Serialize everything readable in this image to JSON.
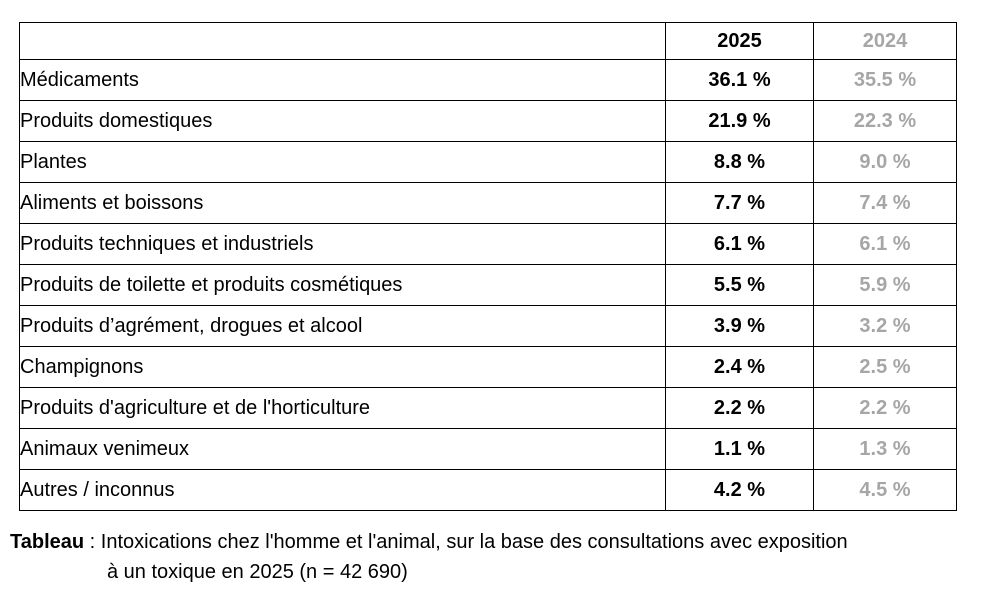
{
  "table": {
    "header": {
      "col_label": "",
      "col_2025": "2025",
      "col_2024": "2024"
    },
    "rows": [
      {
        "label": "Médicaments",
        "pct_2025": "36.1 %",
        "pct_2024": "35.5 %"
      },
      {
        "label": "Produits domestiques",
        "pct_2025": "21.9 %",
        "pct_2024": "22.3 %"
      },
      {
        "label": "Plantes",
        "pct_2025": "8.8 %",
        "pct_2024": "9.0 %"
      },
      {
        "label": "Aliments et boissons",
        "pct_2025": "7.7 %",
        "pct_2024": "7.4 %"
      },
      {
        "label": "Produits techniques et industriels",
        "pct_2025": "6.1 %",
        "pct_2024": "6.1 %"
      },
      {
        "label": "Produits de toilette et produits cosmétiques",
        "pct_2025": "5.5 %",
        "pct_2024": "5.9 %"
      },
      {
        "label": "Produits d’agrément, drogues et alcool",
        "pct_2025": "3.9 %",
        "pct_2024": "3.2 %"
      },
      {
        "label": "Champignons",
        "pct_2025": "2.4 %",
        "pct_2024": "2.5 %"
      },
      {
        "label": "Produits d'agriculture et de l'horticulture",
        "pct_2025": "2.2 %",
        "pct_2024": "2.2 %"
      },
      {
        "label": "Animaux venimeux",
        "pct_2025": "1.1 %",
        "pct_2024": "1.3 %"
      },
      {
        "label": "Autres / inconnus",
        "pct_2025": "4.2 %",
        "pct_2024": "4.5 %"
      }
    ]
  },
  "caption": {
    "label": "Tableau",
    "line1_rest": " : Intoxications chez l'homme et l'animal, sur la base des consultations avec exposition",
    "line2": "à un toxique en 2025 (n = 42 690)"
  },
  "colors": {
    "secondary_year_gray": "#a6a6a6",
    "border": "#000000",
    "text": "#000000"
  }
}
